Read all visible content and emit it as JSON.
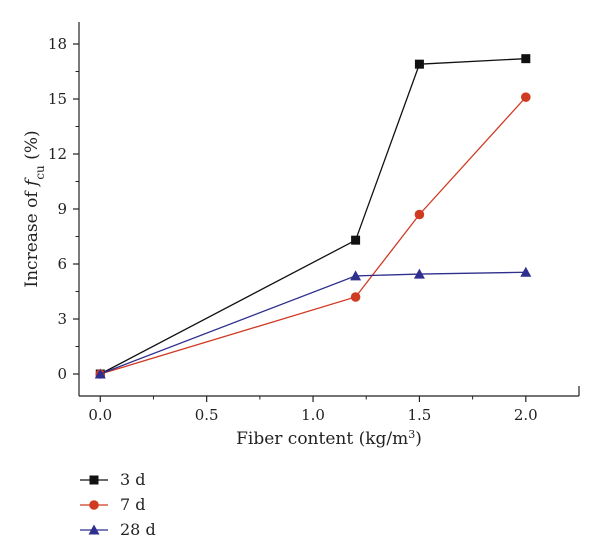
{
  "chart_data": {
    "type": "line",
    "xlabel": {
      "prefix": "Fiber content (kg/m",
      "sup": "3",
      "suffix": ")"
    },
    "ylabel": {
      "prefix": "Increase of ",
      "var": "f",
      "sub": "cu",
      "suffix": " (%)"
    },
    "xlim": [
      -0.1,
      2.25
    ],
    "ylim": [
      -1.2,
      19.2
    ],
    "xticks": [
      0.0,
      0.5,
      1.0,
      1.5,
      2.0
    ],
    "xtick_labels": [
      "0.0",
      "0.5",
      "1.0",
      "1.5",
      "2.0"
    ],
    "yticks": [
      0,
      3,
      6,
      9,
      12,
      15,
      18
    ],
    "ytick_labels": [
      "0",
      "3",
      "6",
      "9",
      "12",
      "15",
      "18"
    ],
    "grid": false,
    "legend_position": "bottom-left, below plot",
    "x": [
      0.0,
      1.2,
      1.5,
      2.0
    ],
    "series": [
      {
        "name": "3 d",
        "values": [
          0.0,
          7.3,
          16.9,
          17.2
        ],
        "color": "#111111",
        "marker": "square"
      },
      {
        "name": "7 d",
        "values": [
          0.0,
          4.2,
          8.7,
          15.1
        ],
        "color": "#d03a22",
        "marker": "circle"
      },
      {
        "name": "28 d",
        "values": [
          0.0,
          5.35,
          5.45,
          5.55
        ],
        "color": "#2f2f8f",
        "marker": "triangle"
      }
    ]
  }
}
